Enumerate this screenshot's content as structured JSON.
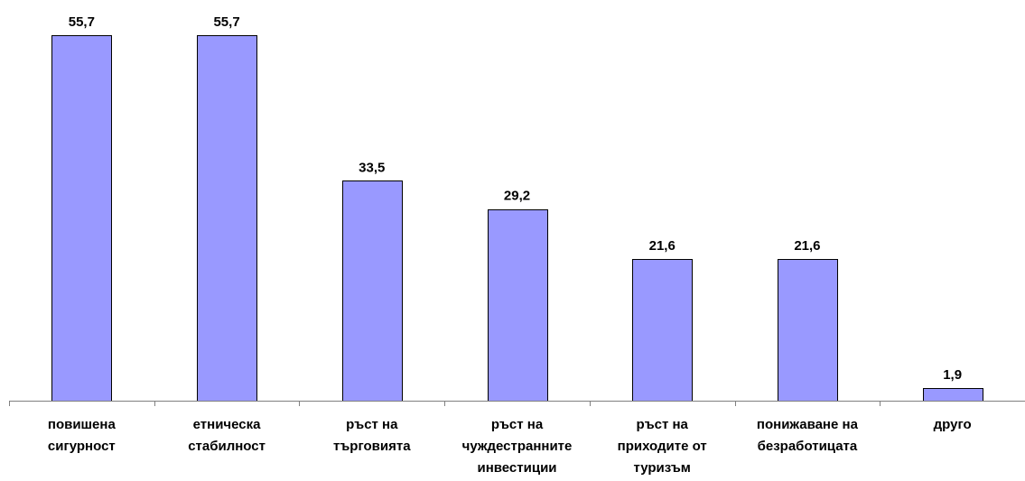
{
  "chart_data": {
    "type": "bar",
    "categories": [
      [
        "повишена",
        "сигурност"
      ],
      [
        "етническа",
        "стабилност"
      ],
      [
        "ръст на",
        "търговията"
      ],
      [
        "ръст на",
        "чуждестранните",
        "инвестиции"
      ],
      [
        "ръст на",
        "приходите от",
        "туризъм"
      ],
      [
        "понижаване на",
        "безработицата"
      ],
      [
        "друго"
      ]
    ],
    "values": [
      55.7,
      55.7,
      33.5,
      29.2,
      21.6,
      21.6,
      1.9
    ],
    "value_labels": [
      "55,7",
      "55,7",
      "33,5",
      "29,2",
      "21,6",
      "21,6",
      "1,9"
    ],
    "ylim": [
      0,
      55.7
    ],
    "grid": false,
    "colors": {
      "bar": "#9999ff",
      "edge": "#000000",
      "axis": "#808080"
    }
  }
}
